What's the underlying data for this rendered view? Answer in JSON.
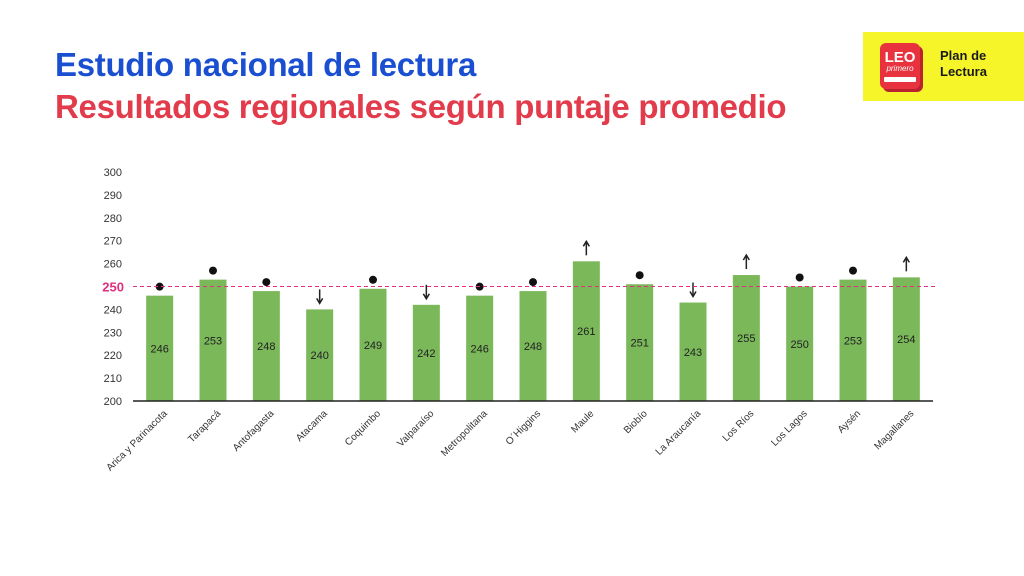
{
  "header": {
    "title": "Estudio nacional de lectura",
    "subtitle": "Resultados regionales según puntaje promedio"
  },
  "logo": {
    "brand": "LEO",
    "brand_sub": "primero",
    "text_line1": "Plan de",
    "text_line2": "Lectura",
    "background_color": "#f5f52a",
    "book_color": "#e8333f"
  },
  "chart_data": {
    "type": "bar",
    "categories": [
      "Arica y Parinacota",
      "Tarapacá",
      "Antofagasta",
      "Atacama",
      "Coquimbo",
      "Valparaíso",
      "Metropolitana",
      "O´Higgins",
      "Maule",
      "Biobío",
      "La Araucanía",
      "Los Ríos",
      "Los Lagos",
      "Aysén",
      "Magallanes"
    ],
    "values": [
      246,
      253,
      248,
      240,
      249,
      242,
      246,
      248,
      261,
      251,
      243,
      255,
      250,
      253,
      254
    ],
    "markers": [
      "dot",
      "dot",
      "dot",
      "down",
      "dot",
      "down",
      "dot",
      "dot",
      "up",
      "dot",
      "down",
      "up",
      "dot",
      "dot",
      "up"
    ],
    "ylim": [
      200,
      300
    ],
    "yticks": [
      200,
      210,
      220,
      230,
      240,
      250,
      260,
      270,
      280,
      290,
      300
    ],
    "reference_line": {
      "value": 250,
      "label": "250",
      "color": "#e0307f"
    },
    "bar_color": "#7ab85a",
    "grid": false,
    "xlabel": "",
    "ylabel": ""
  }
}
